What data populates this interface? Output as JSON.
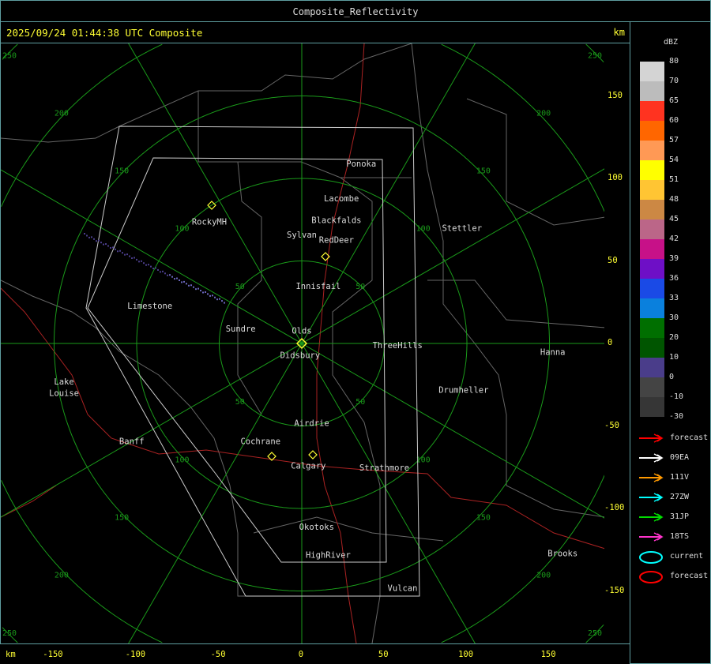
{
  "window": {
    "title": "Composite_Reflectivity"
  },
  "header": {
    "timestamp": "2025/09/24 01:44:38 UTC Composite",
    "unit": "km"
  },
  "axes": {
    "x_unit": "km",
    "x_ticks": [
      "-150",
      "-100",
      "-50",
      "0",
      "50",
      "100",
      "150"
    ],
    "y_ticks": [
      "150",
      "100",
      "50",
      "0",
      "-50",
      "-100",
      "-150"
    ]
  },
  "range_rings": [
    "50",
    "100",
    "150",
    "200",
    "250"
  ],
  "cities": [
    {
      "name": "Ponoka",
      "km": [
        36,
        109
      ]
    },
    {
      "name": "Lacombe",
      "km": [
        24,
        88
      ]
    },
    {
      "name": "Blackfalds",
      "km": [
        21,
        75
      ]
    },
    {
      "name": "Sylvan",
      "km": [
        0,
        66
      ]
    },
    {
      "name": "RedDeer",
      "km": [
        21,
        63
      ]
    },
    {
      "name": "RockyMH",
      "km": [
        -56,
        74
      ]
    },
    {
      "name": "Stettler",
      "km": [
        97,
        70
      ]
    },
    {
      "name": "Innisfail",
      "km": [
        10,
        35
      ]
    },
    {
      "name": "Limestone",
      "km": [
        -92,
        23
      ]
    },
    {
      "name": "Sundre",
      "km": [
        -37,
        9
      ]
    },
    {
      "name": "Olds",
      "km": [
        0,
        8
      ]
    },
    {
      "name": "Didsbury",
      "km": [
        -1,
        -7
      ]
    },
    {
      "name": "ThreeHills",
      "km": [
        58,
        -1
      ]
    },
    {
      "name": "Hanna",
      "km": [
        152,
        -5
      ]
    },
    {
      "name": "Lake",
      "km": [
        -144,
        -23
      ]
    },
    {
      "name": "Louise",
      "km": [
        -144,
        -30
      ]
    },
    {
      "name": "Drumheller",
      "km": [
        98,
        -28
      ]
    },
    {
      "name": "Airdrie",
      "km": [
        6,
        -48
      ]
    },
    {
      "name": "Banff",
      "km": [
        -103,
        -59
      ]
    },
    {
      "name": "Cochrane",
      "km": [
        -25,
        -59
      ]
    },
    {
      "name": "Calgary",
      "km": [
        4,
        -74
      ]
    },
    {
      "name": "Strathmore",
      "km": [
        50,
        -75
      ]
    },
    {
      "name": "Okotoks",
      "km": [
        9,
        -111
      ]
    },
    {
      "name": "HighRiver",
      "km": [
        16,
        -128
      ]
    },
    {
      "name": "Brooks",
      "km": [
        158,
        -127
      ]
    },
    {
      "name": "Vulcan",
      "km": [
        61,
        -148
      ]
    }
  ],
  "legend": {
    "unit": "dBZ",
    "scale": [
      {
        "label": "80",
        "color": "#d4d4d4"
      },
      {
        "label": "70",
        "color": "#bcbcbc"
      },
      {
        "label": "65",
        "color": "#ff3320"
      },
      {
        "label": "60",
        "color": "#ff6600"
      },
      {
        "label": "57",
        "color": "#ff9955"
      },
      {
        "label": "54",
        "color": "#ffff00"
      },
      {
        "label": "51",
        "color": "#ffc533"
      },
      {
        "label": "48",
        "color": "#cc8844"
      },
      {
        "label": "45",
        "color": "#bb6688"
      },
      {
        "label": "42",
        "color": "#c71188"
      },
      {
        "label": "39",
        "color": "#6e0fc6"
      },
      {
        "label": "36",
        "color": "#1a4ae6"
      },
      {
        "label": "33",
        "color": "#0a80dd"
      },
      {
        "label": "30",
        "color": "#006f00"
      },
      {
        "label": "20",
        "color": "#005500"
      },
      {
        "label": "10",
        "color": "#4a3d8a"
      },
      {
        "label": "0",
        "color": "#444444"
      },
      {
        "label": "-10",
        "color": "#363636"
      },
      {
        "label": "-30",
        "color": null
      }
    ],
    "tracks": [
      {
        "label": "forecast",
        "color": "#ff0000",
        "icon": "arrow-icon"
      },
      {
        "label": "09EA",
        "color": "#ffffff",
        "icon": "arrow-icon"
      },
      {
        "label": "111V",
        "color": "#ff9900",
        "icon": "arrow-icon"
      },
      {
        "label": "27ZW",
        "color": "#00ffff",
        "icon": "arrow-icon"
      },
      {
        "label": "31JP",
        "color": "#00dd00",
        "icon": "arrow-icon"
      },
      {
        "label": "18TS",
        "color": "#ff33cc",
        "icon": "arrow-icon"
      },
      {
        "label": "current",
        "color": "#00ffff",
        "icon": "ellipse-icon"
      },
      {
        "label": "forecast",
        "color": "#ff0000",
        "icon": "ellipse-icon"
      }
    ]
  }
}
